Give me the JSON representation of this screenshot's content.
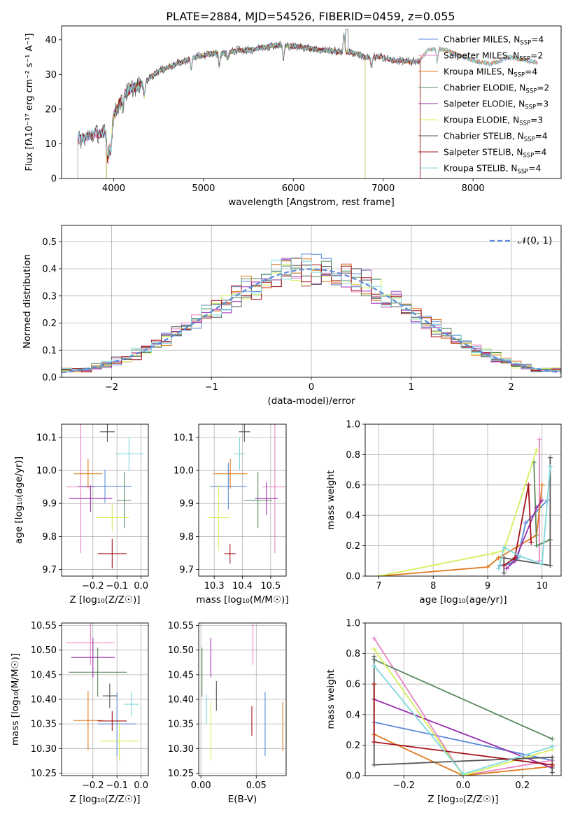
{
  "figure": {
    "title": "PLATE=2884, MJD=54526, FIBERID=0459, z=0.055"
  },
  "colors": {
    "Chabrier MILES": "#5b8bd9",
    "Salpeter MILES": "#e684c2",
    "Kroupa MILES": "#e07b1f",
    "Chabrier ELODIE": "#5a8a5e",
    "Salpeter ELODIE": "#9b2fae",
    "Kroupa ELODIE": "#d4ef5a",
    "Chabrier STELIB": "#555555",
    "Salpeter STELIB": "#a5131a",
    "Kroupa STELIB": "#7fd8dd",
    "normal": "#5b8bd9"
  },
  "chart_data": [
    {
      "type": "line",
      "panel": "spectrum",
      "xlabel": "wavelength [Angstrom, rest frame]",
      "ylabel": "Flux [fλ10⁻¹⁷ erg cm⁻² s⁻¹ A⁻¹]",
      "xlim": [
        3420,
        8980
      ],
      "ylim": [
        0,
        44
      ],
      "xticks": [
        4000,
        5000,
        6000,
        7000,
        8000
      ],
      "yticks": [
        0,
        10,
        20,
        30,
        40
      ],
      "grid": false,
      "legend_position": "top-right",
      "legend": [
        {
          "label": "Chabrier MILES, N_SSP=4",
          "key": "Chabrier MILES"
        },
        {
          "label": "Salpeter MILES, N_SSP=2",
          "key": "Salpeter MILES"
        },
        {
          "label": "Kroupa MILES, N_SSP=4",
          "key": "Kroupa MILES"
        },
        {
          "label": "Chabrier ELODIE, N_SSP=2",
          "key": "Chabrier ELODIE"
        },
        {
          "label": "Salpeter ELODIE, N_SSP=3",
          "key": "Salpeter ELODIE"
        },
        {
          "label": "Kroupa ELODIE, N_SSP=3",
          "key": "Kroupa ELODIE"
        },
        {
          "label": "Chabrier STELIB, N_SSP=4",
          "key": "Chabrier STELIB"
        },
        {
          "label": "Salpeter STELIB, N_SSP=4",
          "key": "Salpeter STELIB"
        },
        {
          "label": "Kroupa STELIB, N_SSP=4",
          "key": "Kroupa STELIB"
        }
      ],
      "continuum": [
        [
          3600,
          11
        ],
        [
          3700,
          12
        ],
        [
          3800,
          13
        ],
        [
          3900,
          13
        ],
        [
          3950,
          10
        ],
        [
          4000,
          18
        ],
        [
          4100,
          24
        ],
        [
          4200,
          26
        ],
        [
          4300,
          27
        ],
        [
          4400,
          29
        ],
        [
          4500,
          31
        ],
        [
          4600,
          32
        ],
        [
          4700,
          33
        ],
        [
          4800,
          34
        ],
        [
          4900,
          35
        ],
        [
          5000,
          35.5
        ],
        [
          5100,
          36
        ],
        [
          5200,
          36
        ],
        [
          5300,
          36.5
        ],
        [
          5400,
          37
        ],
        [
          5500,
          37
        ],
        [
          5600,
          37.5
        ],
        [
          5700,
          38
        ],
        [
          5800,
          38.5
        ],
        [
          5900,
          38.5
        ],
        [
          6000,
          38
        ],
        [
          6100,
          38
        ],
        [
          6200,
          37.5
        ],
        [
          6300,
          37
        ],
        [
          6400,
          37
        ],
        [
          6500,
          36.5
        ],
        [
          6600,
          36.5
        ],
        [
          6700,
          36
        ],
        [
          6800,
          35
        ],
        [
          6900,
          35
        ],
        [
          7000,
          35
        ],
        [
          7100,
          34
        ],
        [
          7200,
          34
        ],
        [
          7300,
          33.5
        ],
        [
          7400,
          34
        ],
        [
          7500,
          37
        ],
        [
          7600,
          37.5
        ],
        [
          7700,
          37
        ],
        [
          7800,
          36
        ],
        [
          7900,
          35
        ],
        [
          8000,
          34
        ],
        [
          8100,
          33.5
        ],
        [
          8200,
          33
        ],
        [
          8300,
          34
        ],
        [
          8400,
          35
        ],
        [
          8500,
          34.5
        ],
        [
          8600,
          34
        ],
        [
          8700,
          33.5
        ],
        [
          8730,
          33
        ]
      ],
      "spectrum_range": {
        "Chabrier MILES": [
          3600,
          8720
        ],
        "Salpeter MILES": [
          3600,
          8720
        ],
        "Kroupa MILES": [
          3920,
          8720
        ],
        "Chabrier ELODIE": [
          3920,
          6800
        ],
        "Salpeter ELODIE": [
          3920,
          6800
        ],
        "Kroupa ELODIE": [
          3920,
          6800
        ],
        "Chabrier STELIB": [
          3600,
          7410
        ],
        "Salpeter STELIB": [
          3600,
          7410
        ],
        "Kroupa STELIB": [
          3600,
          8720
        ]
      }
    },
    {
      "type": "step",
      "panel": "residual histogram",
      "xlabel": "(data-model)/error",
      "ylabel": "Normed distribution",
      "xlim": [
        -2.5,
        2.5
      ],
      "ylim": [
        0,
        0.56
      ],
      "xticks": [
        -2,
        -1,
        0,
        1,
        2
      ],
      "yticks": [
        0.0,
        0.1,
        0.2,
        0.3,
        0.4,
        0.5
      ],
      "grid": true,
      "legend_position": "top-right",
      "normal_label": "𝒩(0, 1)",
      "bin_start": -2.5,
      "bin_width": 0.1
    },
    {
      "type": "errorbar",
      "panel": "age vs Z",
      "xlabel": "Z [log₁₀(Z/Z☉)]",
      "ylabel": "age  [log₁₀(age/yr)]",
      "xlim": [
        -0.33,
        0.03
      ],
      "ylim": [
        9.68,
        10.14
      ],
      "xticks": [
        -0.2,
        -0.1,
        0.0
      ],
      "yticks": [
        9.7,
        9.8,
        9.9,
        10.0,
        10.1
      ],
      "grid": true,
      "points": [
        {
          "key": "Chabrier MILES",
          "x": -0.15,
          "xerr": 0.11,
          "y": 9.952,
          "yerr": 0.05
        },
        {
          "key": "Salpeter MILES",
          "x": -0.25,
          "xerr": 0.06,
          "y": 9.95,
          "yerr": 0.2
        },
        {
          "key": "Kroupa MILES",
          "x": -0.22,
          "xerr": 0.06,
          "y": 9.99,
          "yerr": 0.045
        },
        {
          "key": "Chabrier ELODIE",
          "x": -0.07,
          "xerr": 0.03,
          "y": 9.91,
          "yerr": 0.085
        },
        {
          "key": "Salpeter ELODIE",
          "x": -0.21,
          "xerr": 0.09,
          "y": 9.915,
          "yerr": 0.04
        },
        {
          "key": "Kroupa ELODIE",
          "x": -0.12,
          "xerr": 0.07,
          "y": 9.857,
          "yerr": 0.04
        },
        {
          "key": "Chabrier STELIB",
          "x": -0.14,
          "xerr": 0.03,
          "y": 10.117,
          "yerr": 0.03
        },
        {
          "key": "Salpeter STELIB",
          "x": -0.12,
          "xerr": 0.06,
          "y": 9.748,
          "yerr": 0.045
        },
        {
          "key": "Kroupa STELIB",
          "x": -0.05,
          "xerr": 0.06,
          "y": 10.05,
          "yerr": 0.05
        }
      ]
    },
    {
      "type": "errorbar",
      "panel": "age vs mass",
      "xlabel": "mass [log₁₀(M/M☉)]",
      "ylabel": "",
      "xlim": [
        10.245,
        10.555
      ],
      "ylim": [
        9.68,
        10.14
      ],
      "xticks": [
        10.3,
        10.4,
        10.5
      ],
      "yticks": [
        9.7,
        9.8,
        9.9,
        10.0,
        10.1
      ],
      "grid": true,
      "points": [
        {
          "key": "Chabrier MILES",
          "x": 10.35,
          "xerr": 0.065,
          "y": 9.952,
          "yerr": 0.07
        },
        {
          "key": "Salpeter MILES",
          "x": 10.515,
          "xerr": 0.045,
          "y": 9.95,
          "yerr": 0.2
        },
        {
          "key": "Kroupa MILES",
          "x": 10.357,
          "xerr": 0.06,
          "y": 9.99,
          "yerr": 0.045
        },
        {
          "key": "Chabrier ELODIE",
          "x": 10.455,
          "xerr": 0.05,
          "y": 9.91,
          "yerr": 0.085
        },
        {
          "key": "Salpeter ELODIE",
          "x": 10.485,
          "xerr": 0.04,
          "y": 9.915,
          "yerr": 0.05
        },
        {
          "key": "Kroupa ELODIE",
          "x": 10.315,
          "xerr": 0.04,
          "y": 9.857,
          "yerr": 0.1
        },
        {
          "key": "Chabrier STELIB",
          "x": 10.407,
          "xerr": 0.02,
          "y": 10.117,
          "yerr": 0.03
        },
        {
          "key": "Salpeter STELIB",
          "x": 10.356,
          "xerr": 0.02,
          "y": 9.748,
          "yerr": 0.03
        },
        {
          "key": "Kroupa STELIB",
          "x": 10.39,
          "xerr": 0.02,
          "y": 10.05,
          "yerr": 0.05
        }
      ]
    },
    {
      "type": "line",
      "panel": "mass weight vs age",
      "xlabel": "age  [log₁₀(age/yr)]",
      "ylabel": "mass weight",
      "xlim": [
        6.75,
        10.35
      ],
      "ylim": [
        0,
        1.0
      ],
      "xticks": [
        7,
        8,
        9,
        10
      ],
      "yticks": [
        0.0,
        0.2,
        0.4,
        0.6,
        0.8,
        1.0
      ],
      "grid": true,
      "series": [
        {
          "key": "Chabrier MILES",
          "x": [
            9.22,
            9.4,
            9.55,
            9.7,
            10.1
          ],
          "y": [
            0.07,
            0.08,
            0.12,
            0.35,
            0.5
          ]
        },
        {
          "key": "Salpeter MILES",
          "x": [
            9.95,
            9.95
          ],
          "y": [
            0.1,
            0.9
          ]
        },
        {
          "key": "Kroupa MILES",
          "x": [
            7.0,
            9.0,
            9.2,
            9.9,
            10.0
          ],
          "y": [
            0.0,
            0.06,
            0.12,
            0.27,
            0.6
          ]
        },
        {
          "key": "Chabrier ELODIE",
          "x": [
            9.85,
            9.9,
            10.15
          ],
          "y": [
            0.75,
            0.2,
            0.24
          ]
        },
        {
          "key": "Salpeter ELODIE",
          "x": [
            9.35,
            9.5,
            9.9,
            10.0
          ],
          "y": [
            0.05,
            0.1,
            0.45,
            0.5
          ]
        },
        {
          "key": "Kroupa ELODIE",
          "x": [
            7.0,
            9.1,
            9.3,
            9.9
          ],
          "y": [
            0.0,
            0.15,
            0.17,
            0.83
          ]
        },
        {
          "key": "Chabrier STELIB",
          "x": [
            9.3,
            9.3,
            10.15,
            10.15
          ],
          "y": [
            0.02,
            0.12,
            0.07,
            0.78
          ]
        },
        {
          "key": "Salpeter STELIB",
          "x": [
            9.3,
            9.5,
            9.75,
            9.8
          ],
          "y": [
            0.07,
            0.12,
            0.6,
            0.22
          ]
        },
        {
          "key": "Kroupa STELIB",
          "x": [
            9.2,
            9.3,
            9.6,
            10.0,
            10.15
          ],
          "y": [
            0.05,
            0.19,
            0.13,
            0.08,
            0.72
          ]
        }
      ]
    },
    {
      "type": "errorbar",
      "panel": "mass vs Z",
      "xlabel": "Z [log₁₀(Z/Z☉)]",
      "ylabel": "mass [log₁₀(M/M☉)]",
      "xlim": [
        -0.33,
        0.03
      ],
      "ylim": [
        10.245,
        10.555
      ],
      "xticks": [
        -0.2,
        -0.1,
        0.0
      ],
      "yticks": [
        10.25,
        10.3,
        10.35,
        10.4,
        10.45,
        10.5,
        10.55
      ],
      "grid": true,
      "points": [
        {
          "key": "Chabrier MILES",
          "x": -0.1,
          "xerr": 0.08,
          "y": 10.35,
          "yerr": 0.065
        },
        {
          "key": "Salpeter MILES",
          "x": -0.21,
          "xerr": 0.1,
          "y": 10.515,
          "yerr": 0.045
        },
        {
          "key": "Kroupa MILES",
          "x": -0.22,
          "xerr": 0.06,
          "y": 10.357,
          "yerr": 0.06
        },
        {
          "key": "Chabrier ELODIE",
          "x": -0.18,
          "xerr": 0.12,
          "y": 10.455,
          "yerr": 0.05
        },
        {
          "key": "Salpeter ELODIE",
          "x": -0.2,
          "xerr": 0.09,
          "y": 10.485,
          "yerr": 0.04
        },
        {
          "key": "Kroupa ELODIE",
          "x": -0.09,
          "xerr": 0.08,
          "y": 10.315,
          "yerr": 0.04
        },
        {
          "key": "Chabrier STELIB",
          "x": -0.13,
          "xerr": 0.03,
          "y": 10.407,
          "yerr": 0.025
        },
        {
          "key": "Salpeter STELIB",
          "x": -0.12,
          "xerr": 0.06,
          "y": 10.356,
          "yerr": 0.02
        },
        {
          "key": "Kroupa STELIB",
          "x": -0.04,
          "xerr": 0.03,
          "y": 10.39,
          "yerr": 0.025
        }
      ]
    },
    {
      "type": "errorbar",
      "panel": "mass vs E(B-V)",
      "xlabel": "E(B-V)",
      "ylabel": "",
      "xlim": [
        -0.002,
        0.077
      ],
      "ylim": [
        10.245,
        10.555
      ],
      "xticks": [
        0.0,
        0.05
      ],
      "yticks": [
        10.25,
        10.3,
        10.35,
        10.4,
        10.45,
        10.5,
        10.55
      ],
      "grid": true,
      "points": [
        {
          "key": "Chabrier MILES",
          "x": 0.058,
          "xerr": 0,
          "y": 10.35,
          "yerr": 0.065
        },
        {
          "key": "Salpeter MILES",
          "x": 0.047,
          "xerr": 0,
          "y": 10.515,
          "yerr": 0.045
        },
        {
          "key": "Kroupa MILES",
          "x": 0.074,
          "xerr": 0,
          "y": 10.345,
          "yerr": 0.05
        },
        {
          "key": "Chabrier ELODIE",
          "x": 0.001,
          "xerr": 0,
          "y": 10.455,
          "yerr": 0.05
        },
        {
          "key": "Salpeter ELODIE",
          "x": 0.009,
          "xerr": 0,
          "y": 10.485,
          "yerr": 0.04
        },
        {
          "key": "Kroupa ELODIE",
          "x": 0.009,
          "xerr": 0,
          "y": 10.335,
          "yerr": 0.06
        },
        {
          "key": "Chabrier STELIB",
          "x": 0.014,
          "xerr": 0,
          "y": 10.407,
          "yerr": 0.03
        },
        {
          "key": "Salpeter STELIB",
          "x": 0.046,
          "xerr": 0,
          "y": 10.356,
          "yerr": 0.03
        },
        {
          "key": "Kroupa STELIB",
          "x": 0.005,
          "xerr": 0,
          "y": 10.38,
          "yerr": 0.03
        }
      ]
    },
    {
      "type": "line",
      "panel": "mass weight vs Z",
      "xlabel": "Z [log₁₀(Z/Z☉)]",
      "ylabel": "mass weight",
      "xlim": [
        -0.33,
        0.33
      ],
      "ylim": [
        0,
        1.0
      ],
      "xticks": [
        -0.2,
        0.0,
        0.2
      ],
      "yticks": [
        0.0,
        0.2,
        0.4,
        0.6,
        0.8,
        1.0
      ],
      "grid": true,
      "series": [
        {
          "key": "Chabrier MILES",
          "x": [
            -0.3,
            0.3
          ],
          "y": [
            0.35,
            0.1
          ]
        },
        {
          "key": "Salpeter MILES",
          "x": [
            -0.3,
            0.0,
            0.3
          ],
          "y": [
            0.9,
            0.0,
            0.1
          ]
        },
        {
          "key": "Kroupa MILES",
          "x": [
            -0.3,
            -0.3,
            0.0,
            0.3
          ],
          "y": [
            0.6,
            0.27,
            0.0,
            0.06
          ]
        },
        {
          "key": "Chabrier ELODIE",
          "x": [
            -0.3,
            0.3
          ],
          "y": [
            0.76,
            0.24
          ]
        },
        {
          "key": "Salpeter ELODIE",
          "x": [
            -0.3,
            0.3
          ],
          "y": [
            0.5,
            0.05
          ]
        },
        {
          "key": "Kroupa ELODIE",
          "x": [
            -0.3,
            0.0,
            0.3
          ],
          "y": [
            0.83,
            0.0,
            0.17
          ]
        },
        {
          "key": "Chabrier STELIB",
          "x": [
            -0.3,
            -0.3,
            0.3,
            0.3,
            0.3
          ],
          "y": [
            0.78,
            0.07,
            0.12,
            0.07,
            0.02
          ]
        },
        {
          "key": "Salpeter STELIB",
          "x": [
            -0.3,
            -0.3,
            0.3
          ],
          "y": [
            0.6,
            0.22,
            0.07
          ]
        },
        {
          "key": "Kroupa STELIB",
          "x": [
            -0.3,
            0.0,
            0.3
          ],
          "y": [
            0.72,
            0.01,
            0.19
          ]
        }
      ]
    }
  ]
}
